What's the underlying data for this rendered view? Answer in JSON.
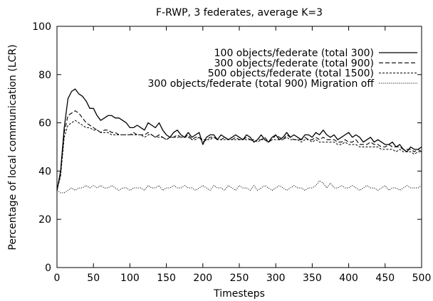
{
  "chart_data": {
    "type": "line",
    "title": "F-RWP, 3 federates, average K=3",
    "xlabel": "Timesteps",
    "ylabel": "Percentage of local communication (LCR)",
    "xlim": [
      0,
      500
    ],
    "ylim": [
      0,
      100
    ],
    "xticks": [
      "0",
      "50",
      "100",
      "150",
      "200",
      "250",
      "300",
      "350",
      "400",
      "450",
      "500"
    ],
    "yticks": [
      "0",
      "20",
      "40",
      "60",
      "80",
      "100"
    ],
    "grid": false,
    "legend_position": "top-right",
    "x": [
      0,
      5,
      10,
      15,
      20,
      25,
      30,
      35,
      40,
      45,
      50,
      55,
      60,
      65,
      70,
      75,
      80,
      85,
      90,
      95,
      100,
      105,
      110,
      115,
      120,
      125,
      130,
      135,
      140,
      145,
      150,
      155,
      160,
      165,
      170,
      175,
      180,
      185,
      190,
      195,
      200,
      205,
      210,
      215,
      220,
      225,
      230,
      235,
      240,
      245,
      250,
      255,
      260,
      265,
      270,
      275,
      280,
      285,
      290,
      295,
      300,
      305,
      310,
      315,
      320,
      325,
      330,
      335,
      340,
      345,
      350,
      355,
      360,
      365,
      370,
      375,
      380,
      385,
      390,
      395,
      400,
      405,
      410,
      415,
      420,
      425,
      430,
      435,
      440,
      445,
      450,
      455,
      460,
      465,
      470,
      475,
      480,
      485,
      490,
      495,
      500
    ],
    "series": [
      {
        "name": "100 objects/federate (total 300)",
        "dash": "solid",
        "values": [
          32,
          40,
          58,
          70,
          73,
          74,
          72,
          71,
          69,
          66,
          66,
          63,
          61,
          62,
          63,
          63,
          62,
          62,
          61,
          60,
          58,
          58,
          59,
          58,
          57,
          60,
          59,
          58,
          60,
          57,
          55,
          54,
          56,
          57,
          55,
          54,
          56,
          54,
          55,
          56,
          51,
          54,
          55,
          55,
          53,
          55,
          54,
          53,
          54,
          55,
          54,
          53,
          55,
          54,
          52,
          53,
          55,
          53,
          52,
          54,
          55,
          53,
          54,
          56,
          54,
          55,
          54,
          53,
          55,
          55,
          54,
          56,
          55,
          57,
          55,
          54,
          55,
          53,
          54,
          55,
          56,
          54,
          55,
          54,
          52,
          53,
          54,
          52,
          53,
          52,
          51,
          51,
          52,
          50,
          51,
          49,
          48,
          50,
          49,
          49,
          50
        ]
      },
      {
        "name": "300 objects/federate (total 900)",
        "dash": "dashed",
        "values": [
          32,
          39,
          56,
          63,
          64,
          65,
          64,
          62,
          60,
          59,
          58,
          57,
          56,
          57,
          57,
          56,
          56,
          55,
          55,
          55,
          55,
          56,
          55,
          55,
          55,
          56,
          55,
          54,
          55,
          54,
          53,
          54,
          54,
          55,
          54,
          54,
          55,
          53,
          54,
          54,
          52,
          53,
          54,
          54,
          53,
          53,
          54,
          53,
          53,
          54,
          53,
          53,
          54,
          53,
          52,
          53,
          53,
          54,
          52,
          53,
          55,
          54,
          53,
          55,
          54,
          53,
          53,
          53,
          54,
          53,
          53,
          54,
          53,
          54,
          53,
          53,
          53,
          52,
          52,
          53,
          52,
          52,
          53,
          51,
          51,
          51,
          52,
          51,
          51,
          50,
          50,
          51,
          50,
          50,
          50,
          49,
          49,
          49,
          48,
          49,
          48
        ]
      },
      {
        "name": "500 objects/federate (total 1500)",
        "dash": "short-dash",
        "values": [
          32,
          38,
          54,
          59,
          60,
          61,
          60,
          59,
          58,
          58,
          57,
          57,
          56,
          56,
          56,
          55,
          55,
          55,
          55,
          55,
          55,
          55,
          55,
          55,
          54,
          55,
          55,
          54,
          54,
          54,
          53,
          54,
          54,
          54,
          54,
          54,
          54,
          53,
          53,
          54,
          53,
          53,
          53,
          54,
          53,
          53,
          53,
          53,
          53,
          53,
          53,
          53,
          53,
          53,
          53,
          52,
          53,
          53,
          52,
          53,
          53,
          53,
          53,
          54,
          53,
          53,
          53,
          52,
          53,
          53,
          52,
          53,
          52,
          52,
          52,
          52,
          52,
          51,
          51,
          52,
          51,
          51,
          51,
          50,
          50,
          50,
          50,
          50,
          50,
          49,
          49,
          49,
          49,
          48,
          49,
          48,
          48,
          48,
          47,
          48,
          48
        ]
      },
      {
        "name": "300 objects/federate (total 900) Migration off",
        "dash": "dotted",
        "values": [
          32,
          31,
          31,
          32,
          33,
          32,
          33,
          33,
          34,
          33,
          34,
          33,
          34,
          33,
          33,
          34,
          33,
          32,
          33,
          33,
          32,
          33,
          33,
          33,
          32,
          34,
          33,
          33,
          34,
          32,
          33,
          33,
          34,
          33,
          33,
          34,
          33,
          33,
          32,
          33,
          34,
          33,
          32,
          34,
          33,
          33,
          32,
          34,
          33,
          32,
          34,
          33,
          33,
          32,
          34,
          32,
          33,
          34,
          33,
          32,
          33,
          34,
          33,
          32,
          33,
          34,
          33,
          33,
          32,
          33,
          33,
          34,
          36,
          35,
          33,
          35,
          33,
          33,
          34,
          33,
          33,
          34,
          33,
          32,
          33,
          34,
          33,
          33,
          32,
          33,
          34,
          32,
          33,
          33,
          32,
          33,
          34,
          33,
          33,
          33,
          34
        ]
      }
    ]
  }
}
